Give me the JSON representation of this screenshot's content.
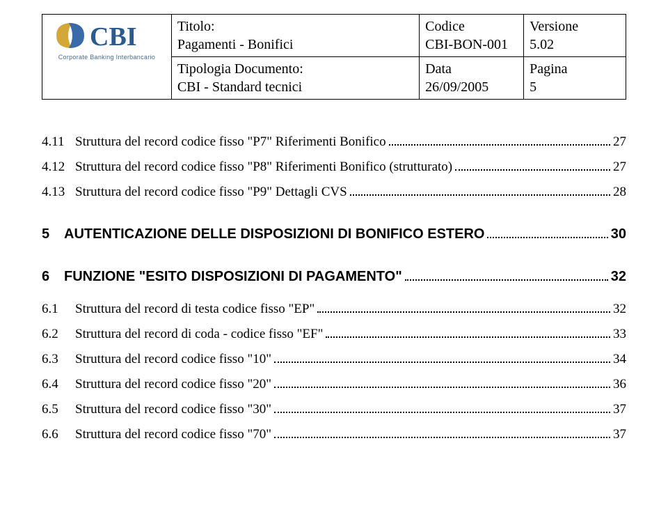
{
  "header": {
    "logo_tagline": "Corporate Banking Interbancario",
    "col1_label": "Titolo:",
    "col1_value": "Pagamenti - Bonifici",
    "col1_label2": "Tipologia Documento:",
    "col1_value2": "CBI - Standard tecnici",
    "col2_label": "Codice",
    "col2_value": "CBI-BON-001",
    "col2_label2": "Data",
    "col2_value2": "26/09/2005",
    "col3_label": "Versione",
    "col3_value": "5.02",
    "col3_label2": "Pagina",
    "col3_value2": "5"
  },
  "toc": [
    {
      "type": "sub",
      "num": "4.11",
      "title": "Struttura del record codice fisso \"P7\" Riferimenti Bonifico",
      "page": "27"
    },
    {
      "type": "sub",
      "num": "4.12",
      "title": "Struttura del record codice fisso \"P8\" Riferimenti Bonifico (strutturato)",
      "page": "27"
    },
    {
      "type": "sub",
      "num": "4.13",
      "title": "Struttura del record codice fisso \"P9\" Dettagli CVS",
      "page": "28"
    },
    {
      "type": "sec",
      "num": "5",
      "title": "AUTENTICAZIONE DELLE DISPOSIZIONI DI BONIFICO ESTERO",
      "page": "30"
    },
    {
      "type": "sec",
      "num": "6",
      "title": "FUNZIONE \"ESITO DISPOSIZIONI DI PAGAMENTO\"",
      "page": "32"
    },
    {
      "type": "sub",
      "num": "6.1",
      "title": "Struttura del record di testa codice fisso \"EP\"",
      "page": "32"
    },
    {
      "type": "sub",
      "num": "6.2",
      "title": "Struttura del record di coda - codice fisso \"EF\"",
      "page": "33"
    },
    {
      "type": "sub",
      "num": "6.3",
      "title": "Struttura del record codice fisso \"10\"",
      "page": "34"
    },
    {
      "type": "sub",
      "num": "6.4",
      "title": "Struttura del record codice fisso \"20\"",
      "page": "36"
    },
    {
      "type": "sub",
      "num": "6.5",
      "title": "Struttura del record codice fisso \"30\"",
      "page": "37"
    },
    {
      "type": "sub",
      "num": "6.6",
      "title": "Struttura del record codice fisso \"70\"",
      "page": "37"
    }
  ]
}
